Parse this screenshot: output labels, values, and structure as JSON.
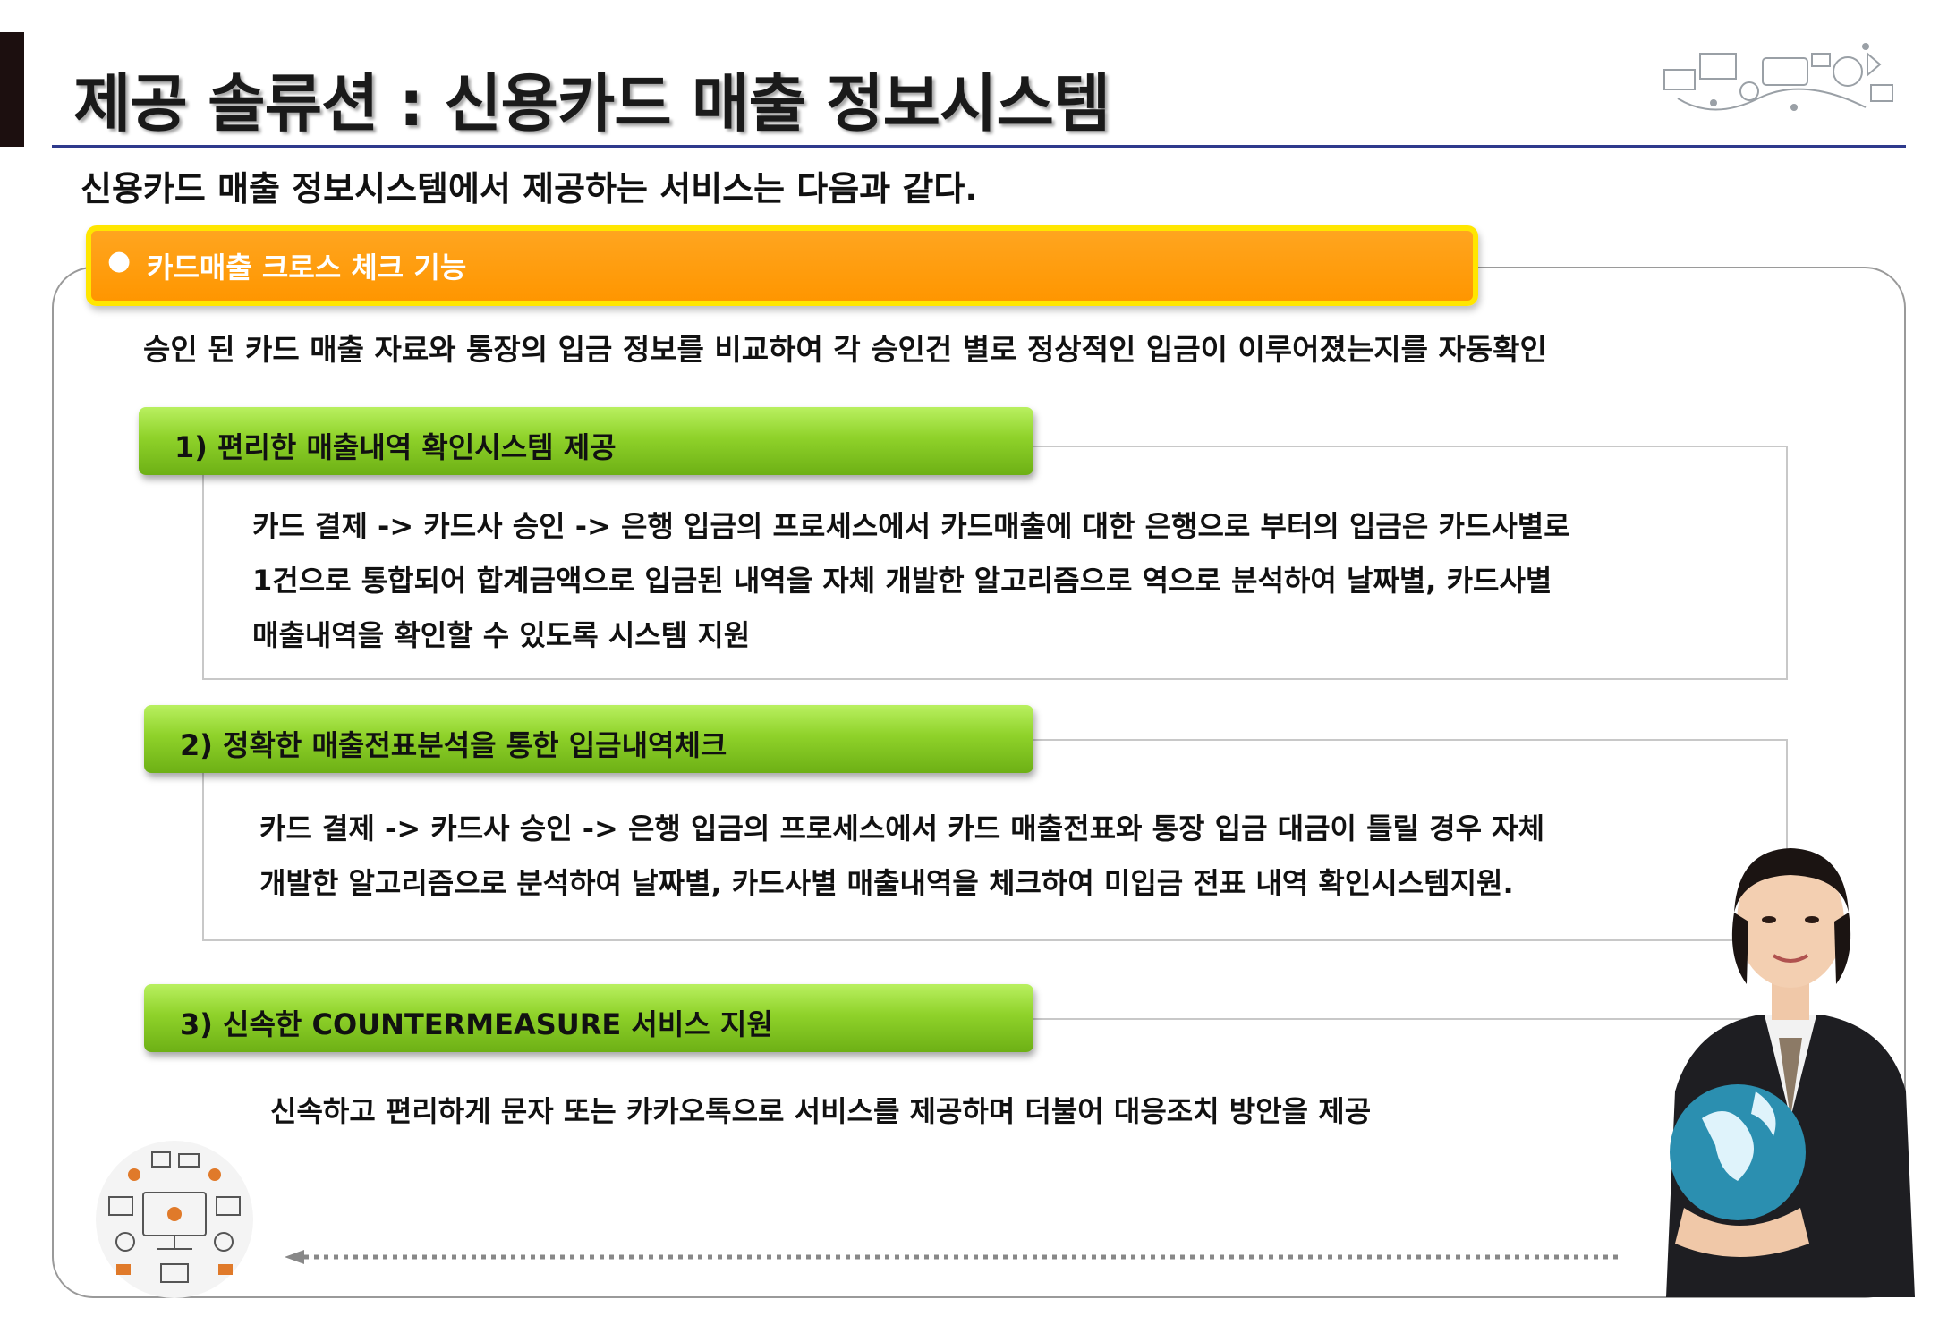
{
  "title": "제공 솔류션 : 신용카드 매출 정보시스템",
  "subtitle": "신용카드 매출 정보시스템에서 제공하는 서비스는 다음과 같다.",
  "banner": {
    "bullet": "●",
    "label": "카드매출 크로스 체크 기능"
  },
  "intro": "승인 된 카드 매출 자료와 통장의 입금 정보를 비교하여  각 승인건 별로 정상적인 입금이 이루어졌는지를  자동확인",
  "sections": [
    {
      "heading": "1) 편리한 매출내역 확인시스템 제공",
      "lines": [
        "카드 결제 -> 카드사 승인 -> 은행 입금의 프로세스에서 카드매출에 대한 은행으로 부터의 입금은 카드사별로",
        "1건으로 통합되어 합계금액으로 입금된 내역을 자체 개발한 알고리즘으로 역으로 분석하여 날짜별, 카드사별",
        "매출내역을 확인할 수 있도록 시스템 지원"
      ]
    },
    {
      "heading": "2) 정확한 매출전표분석을 통한 입금내역체크",
      "lines": [
        "카드 결제 -> 카드사 승인 -> 은행 입금의 프로세스에서 카드 매출전표와 통장 입금 대금이 틀릴 경우 자체",
        "개발한 알고리즘으로 분석하여 날짜별, 카드사별 매출내역을 체크하여 미입금 전표 내역 확인시스템지원."
      ]
    },
    {
      "heading": "3) 신속한 COUNTERMEASURE 서비스 지원",
      "lines": [
        "신속하고 편리하게 문자 또는 카카오톡으로 서비스를 제공하며 더불어 대응조치 방안을 제공"
      ]
    }
  ],
  "colors": {
    "banner_fill": "#ff9a00",
    "banner_border": "#ffe600",
    "green_bar": "#8fd22a",
    "title_rule": "#2e3a8c",
    "left_bar": "#1c0f0f"
  }
}
